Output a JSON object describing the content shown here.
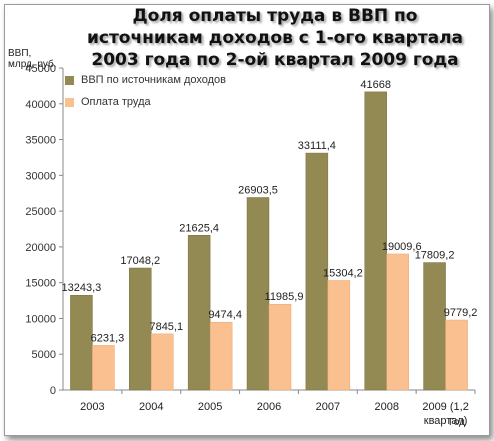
{
  "chart_data": {
    "type": "bar",
    "title": "Доля оплаты труда в ВВП по источникам доходов с 1-ого квартала 2003 года по 2-ой квартал 2009 года",
    "ylabel": "ВВП, млрд. руб.",
    "xlabel": "Год",
    "categories": [
      "2003",
      "2004",
      "2005",
      "2006",
      "2007",
      "2008",
      "2009 (1,2 квартал)"
    ],
    "series": [
      {
        "name": "ВВП по источникам доходов",
        "color": "#938953",
        "values": [
          13243.3,
          17048.2,
          21625.4,
          26903.5,
          33111.4,
          41668,
          17809.2
        ],
        "labels": [
          "13243,3",
          "17048,2",
          "21625,4",
          "26903,5",
          "33111,4",
          "41668",
          "17809,2"
        ]
      },
      {
        "name": "Оплата труда",
        "color": "#fac090",
        "values": [
          6231.3,
          7845.1,
          9474.4,
          11985.9,
          15304.2,
          19009.6,
          9779.2
        ],
        "labels": [
          "6231,3",
          "7845,1",
          "9474,4",
          "11985,9",
          "15304,2",
          "19009,6",
          "9779,2"
        ]
      }
    ],
    "yticks": [
      0,
      5000,
      10000,
      15000,
      20000,
      25000,
      30000,
      35000,
      40000,
      45000
    ],
    "ylim": [
      0,
      45000
    ],
    "legend_position": "top-left",
    "grid": false
  }
}
